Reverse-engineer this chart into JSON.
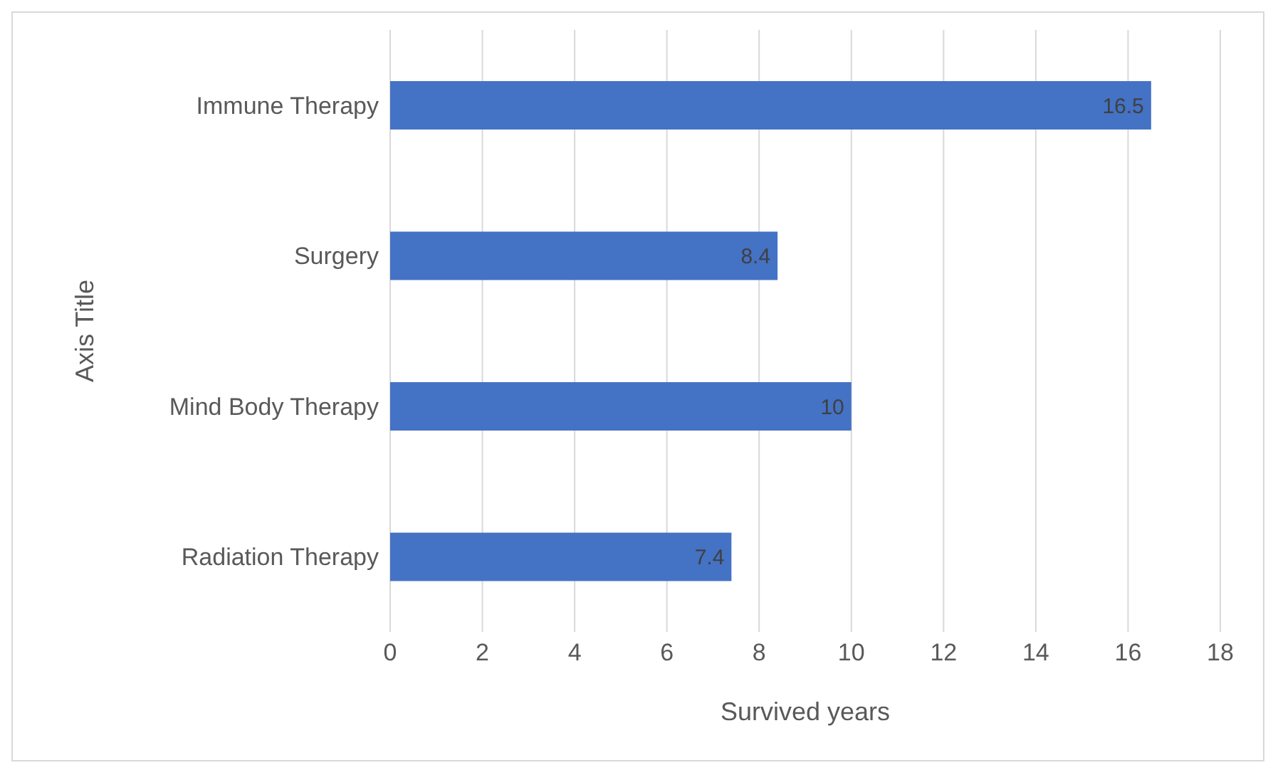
{
  "chart_data": {
    "type": "bar",
    "orientation": "horizontal",
    "xlabel": "Survived years",
    "ylabel": "Axis Title",
    "categories": [
      "Immune Therapy",
      "Surgery",
      "Mind Body Therapy",
      "Radiation Therapy"
    ],
    "values": [
      16.5,
      8.4,
      10,
      7.4
    ],
    "color": "#4472c4",
    "xlim": [
      0,
      18
    ],
    "xticks": [
      0,
      2,
      4,
      6,
      8,
      10,
      12,
      14,
      16,
      18
    ],
    "grid": "x",
    "data_labels": true
  }
}
